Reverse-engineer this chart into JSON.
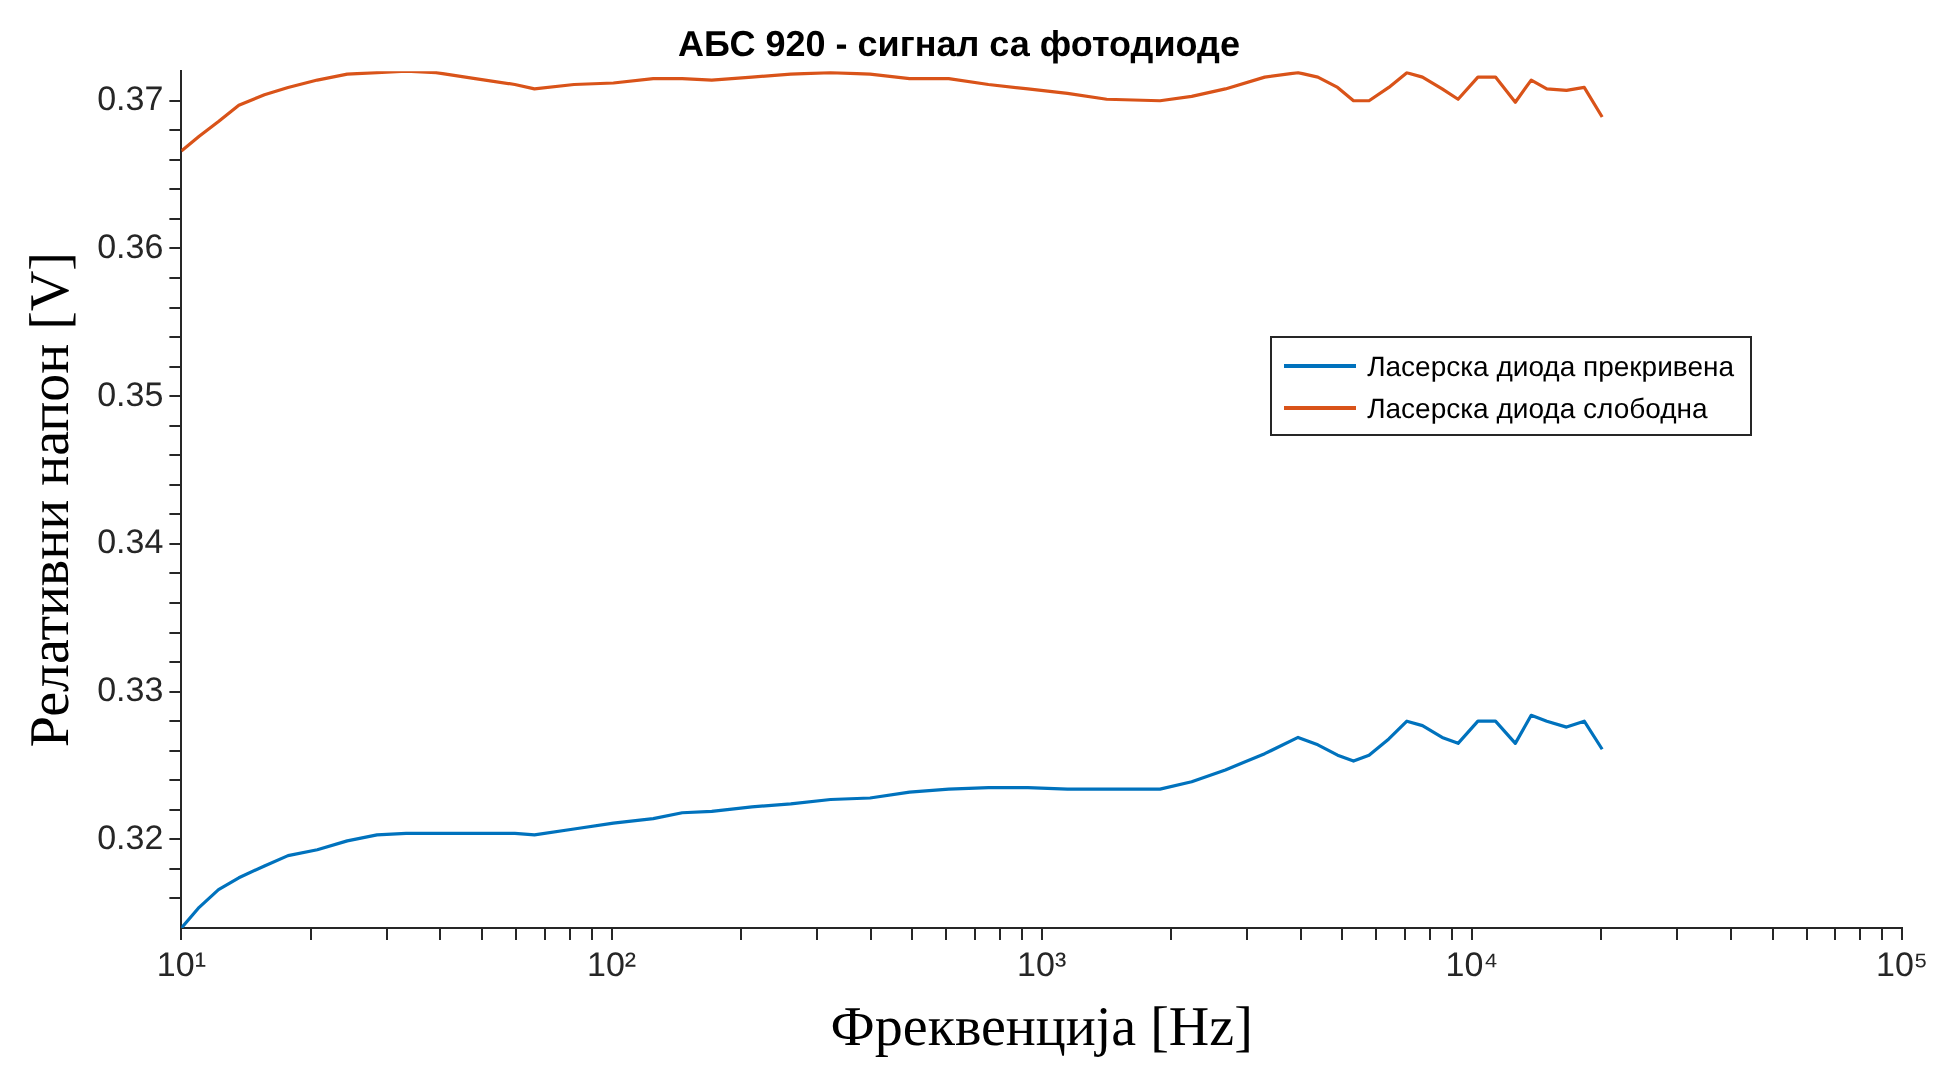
{
  "chart_data": {
    "type": "line",
    "title": "АБС 920 - сигнал са фотодиоде",
    "xlabel": "Фреквенција [Hz]",
    "ylabel": "Релативни напон [V]",
    "x": [
      10,
      11,
      12.2,
      13.6,
      15.6,
      17.7,
      20.7,
      24.3,
      28.5,
      33.3,
      39.1,
      48.2,
      59.6,
      66.2,
      81.8,
      101,
      125,
      146,
      171,
      212,
      261,
      323,
      399,
      493,
      608,
      752,
      929,
      1148,
      1416,
      1884,
      2232,
      2673,
      3300,
      3945,
      4385,
      4875,
      5308,
      5768,
      6412,
      7063,
      7678,
      8531,
      9290,
      10330,
      11350,
      12620,
      13740,
      14940,
      16600,
      18250,
      20090
    ],
    "series": [
      {
        "name": "Ласерска диода прекривена",
        "color": "#0072bd",
        "values": [
          0.314,
          0.3154,
          0.3166,
          0.3174,
          0.3182,
          0.3189,
          0.3193,
          0.3199,
          0.3203,
          0.3204,
          0.3204,
          0.3204,
          0.3204,
          0.3203,
          0.3207,
          0.3211,
          0.3214,
          0.3218,
          0.3219,
          0.3222,
          0.3224,
          0.3227,
          0.3228,
          0.3232,
          0.3234,
          0.3235,
          0.3235,
          0.3234,
          0.3234,
          0.3234,
          0.3239,
          0.3247,
          0.3258,
          0.3269,
          0.3264,
          0.3257,
          0.3253,
          0.3257,
          0.3268,
          0.328,
          0.3277,
          0.3269,
          0.3265,
          0.328,
          0.328,
          0.3265,
          0.3284,
          0.328,
          0.3276,
          0.328,
          0.3261
        ]
      },
      {
        "name": "Ласерска диода слободна",
        "color": "#d95319",
        "values": [
          0.3666,
          0.3676,
          0.3686,
          0.3697,
          0.3704,
          0.3709,
          0.3714,
          0.3718,
          0.3719,
          0.372,
          0.3719,
          0.3715,
          0.3711,
          0.3708,
          0.3711,
          0.3712,
          0.3715,
          0.3715,
          0.3714,
          0.3716,
          0.3718,
          0.3719,
          0.3718,
          0.3715,
          0.3715,
          0.3711,
          0.3708,
          0.3705,
          0.3701,
          0.37,
          0.3703,
          0.3708,
          0.3716,
          0.3719,
          0.3716,
          0.3709,
          0.37,
          0.37,
          0.3709,
          0.3719,
          0.3716,
          0.3708,
          0.3701,
          0.3716,
          0.3716,
          0.3699,
          0.3714,
          0.3708,
          0.3707,
          0.3709,
          0.3689
        ]
      }
    ],
    "log": "x",
    "xlim": [
      10,
      100000
    ],
    "xticks": [
      {
        "value": 10,
        "label": "10¹"
      },
      {
        "value": 20,
        "label": null
      },
      {
        "value": 30,
        "label": null
      },
      {
        "value": 40,
        "label": null
      },
      {
        "value": 50,
        "label": null
      },
      {
        "value": 60,
        "label": null
      },
      {
        "value": 70,
        "label": null
      },
      {
        "value": 80,
        "label": null
      },
      {
        "value": 90,
        "label": null
      },
      {
        "value": 100,
        "label": "10²"
      },
      {
        "value": 200,
        "label": null
      },
      {
        "value": 300,
        "label": null
      },
      {
        "value": 400,
        "label": null
      },
      {
        "value": 500,
        "label": null
      },
      {
        "value": 600,
        "label": null
      },
      {
        "value": 700,
        "label": null
      },
      {
        "value": 800,
        "label": null
      },
      {
        "value": 900,
        "label": null
      },
      {
        "value": 1000,
        "label": "10³"
      },
      {
        "value": 2000,
        "label": null
      },
      {
        "value": 3000,
        "label": null
      },
      {
        "value": 4000,
        "label": null
      },
      {
        "value": 5000,
        "label": null
      },
      {
        "value": 6000,
        "label": null
      },
      {
        "value": 7000,
        "label": null
      },
      {
        "value": 8000,
        "label": null
      },
      {
        "value": 9000,
        "label": null
      },
      {
        "value": 10000,
        "label": "10⁴"
      },
      {
        "value": 20000,
        "label": null
      },
      {
        "value": 30000,
        "label": null
      },
      {
        "value": 40000,
        "label": null
      },
      {
        "value": 50000,
        "label": null
      },
      {
        "value": 60000,
        "label": null
      },
      {
        "value": 70000,
        "label": null
      },
      {
        "value": 80000,
        "label": null
      },
      {
        "value": 90000,
        "label": null
      },
      {
        "value": 100000,
        "label": "10⁵"
      }
    ],
    "ylim": [
      0.314,
      0.372
    ],
    "yticks": [
      {
        "value": 0.316,
        "label": null
      },
      {
        "value": 0.318,
        "label": null
      },
      0.32,
      {
        "value": 0.322,
        "label": null
      },
      {
        "value": 0.324,
        "label": null
      },
      {
        "value": 0.326,
        "label": null
      },
      {
        "value": 0.328,
        "label": null
      },
      0.33,
      {
        "value": 0.332,
        "label": null
      },
      {
        "value": 0.334,
        "label": null
      },
      {
        "value": 0.336,
        "label": null
      },
      {
        "value": 0.338,
        "label": null
      },
      0.34,
      {
        "value": 0.342,
        "label": null
      },
      {
        "value": 0.344,
        "label": null
      },
      {
        "value": 0.346,
        "label": null
      },
      {
        "value": 0.348,
        "label": null
      },
      0.35,
      {
        "value": 0.352,
        "label": null
      },
      {
        "value": 0.354,
        "label": null
      },
      {
        "value": 0.356,
        "label": null
      },
      {
        "value": 0.358,
        "label": null
      },
      0.36,
      {
        "value": 0.362,
        "label": null
      },
      {
        "value": 0.364,
        "label": null
      },
      {
        "value": 0.366,
        "label": null
      },
      {
        "value": 0.368,
        "label": null
      },
      0.37
    ],
    "grid": false,
    "legend": "right",
    "marker": "none",
    "line_style": "solid"
  }
}
